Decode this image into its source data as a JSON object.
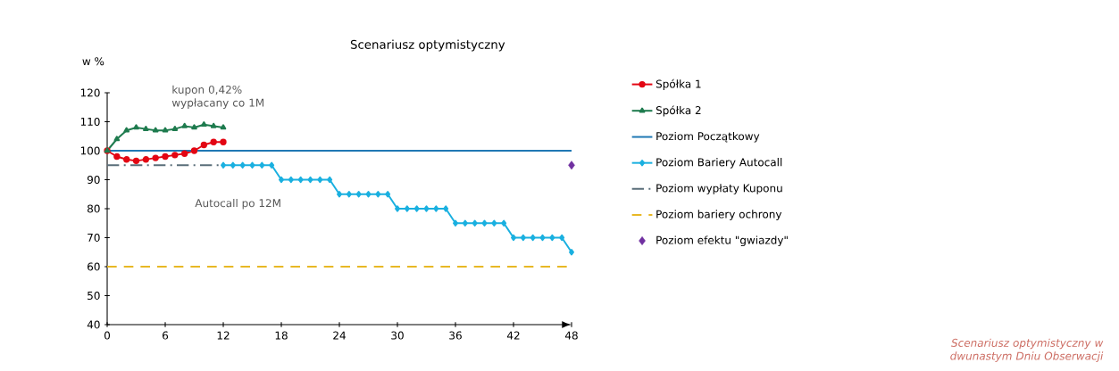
{
  "chart_data": {
    "type": "line",
    "title": "Scenariusz optymistyczny",
    "ylabel": "w %",
    "xlim": [
      0,
      48
    ],
    "ylim": [
      40,
      120
    ],
    "xticks": [
      0,
      6,
      12,
      18,
      24,
      30,
      36,
      42,
      48
    ],
    "yticks": [
      40,
      50,
      60,
      70,
      80,
      90,
      100,
      110,
      120
    ],
    "grid": false,
    "legend": "right",
    "series": [
      {
        "name": "Spółka 1",
        "color": "#e30613",
        "marker": "circle",
        "line_style": "solid",
        "x": [
          0,
          1,
          2,
          3,
          4,
          5,
          6,
          7,
          8,
          9,
          10,
          11,
          12
        ],
        "values": [
          100,
          98,
          97,
          96.5,
          97,
          97.5,
          98,
          98.5,
          99,
          100,
          102,
          103,
          103
        ]
      },
      {
        "name": "Spółka 2",
        "color": "#1e7b4e",
        "marker": "triangle",
        "line_style": "solid",
        "x": [
          0,
          1,
          2,
          3,
          4,
          5,
          6,
          7,
          8,
          9,
          10,
          11,
          12
        ],
        "values": [
          100,
          104,
          107,
          108,
          107.5,
          107,
          107,
          107.5,
          108.5,
          108,
          109,
          108.5,
          108
        ]
      },
      {
        "name": "Poziom Początkowy",
        "color": "#1f78b4",
        "marker": "none",
        "line_style": "solid",
        "x": [
          0,
          48
        ],
        "values": [
          100,
          100
        ]
      },
      {
        "name": "Poziom Bariery Autocall",
        "color": "#1ab0e0",
        "marker": "diamond",
        "line_style": "solid",
        "x": [
          12,
          13,
          14,
          15,
          16,
          17,
          18,
          19,
          20,
          21,
          22,
          23,
          24,
          25,
          26,
          27,
          28,
          29,
          30,
          31,
          32,
          33,
          34,
          35,
          36,
          37,
          38,
          39,
          40,
          41,
          42,
          43,
          44,
          45,
          46,
          47,
          48
        ],
        "values": [
          95,
          95,
          95,
          95,
          95,
          95,
          90,
          90,
          90,
          90,
          90,
          90,
          85,
          85,
          85,
          85,
          85,
          85,
          80,
          80,
          80,
          80,
          80,
          80,
          75,
          75,
          75,
          75,
          75,
          75,
          70,
          70,
          70,
          70,
          70,
          70,
          65
        ]
      },
      {
        "name": "Poziom wypłaty Kuponu",
        "color": "#5a6e7a",
        "marker": "none",
        "line_style": "dashdotted",
        "x": [
          0,
          12
        ],
        "values": [
          95,
          95
        ]
      },
      {
        "name": "Poziom bariery ochrony",
        "color": "#e8b825",
        "marker": "none",
        "line_style": "dashed",
        "x": [
          0,
          48
        ],
        "values": [
          60,
          60
        ]
      },
      {
        "name": "Poziom efektu \"gwiazdy\"",
        "color": "#7030a0",
        "type": "scatter",
        "marker": "diamond",
        "x": [
          48
        ],
        "values": [
          95
        ]
      }
    ],
    "annotations": [
      "kupon 0,42% wypłacany co 1M",
      "Autocall po 12M",
      "Scenariusz optymistyczny w dwunastym Dniu Obserwacji"
    ]
  }
}
